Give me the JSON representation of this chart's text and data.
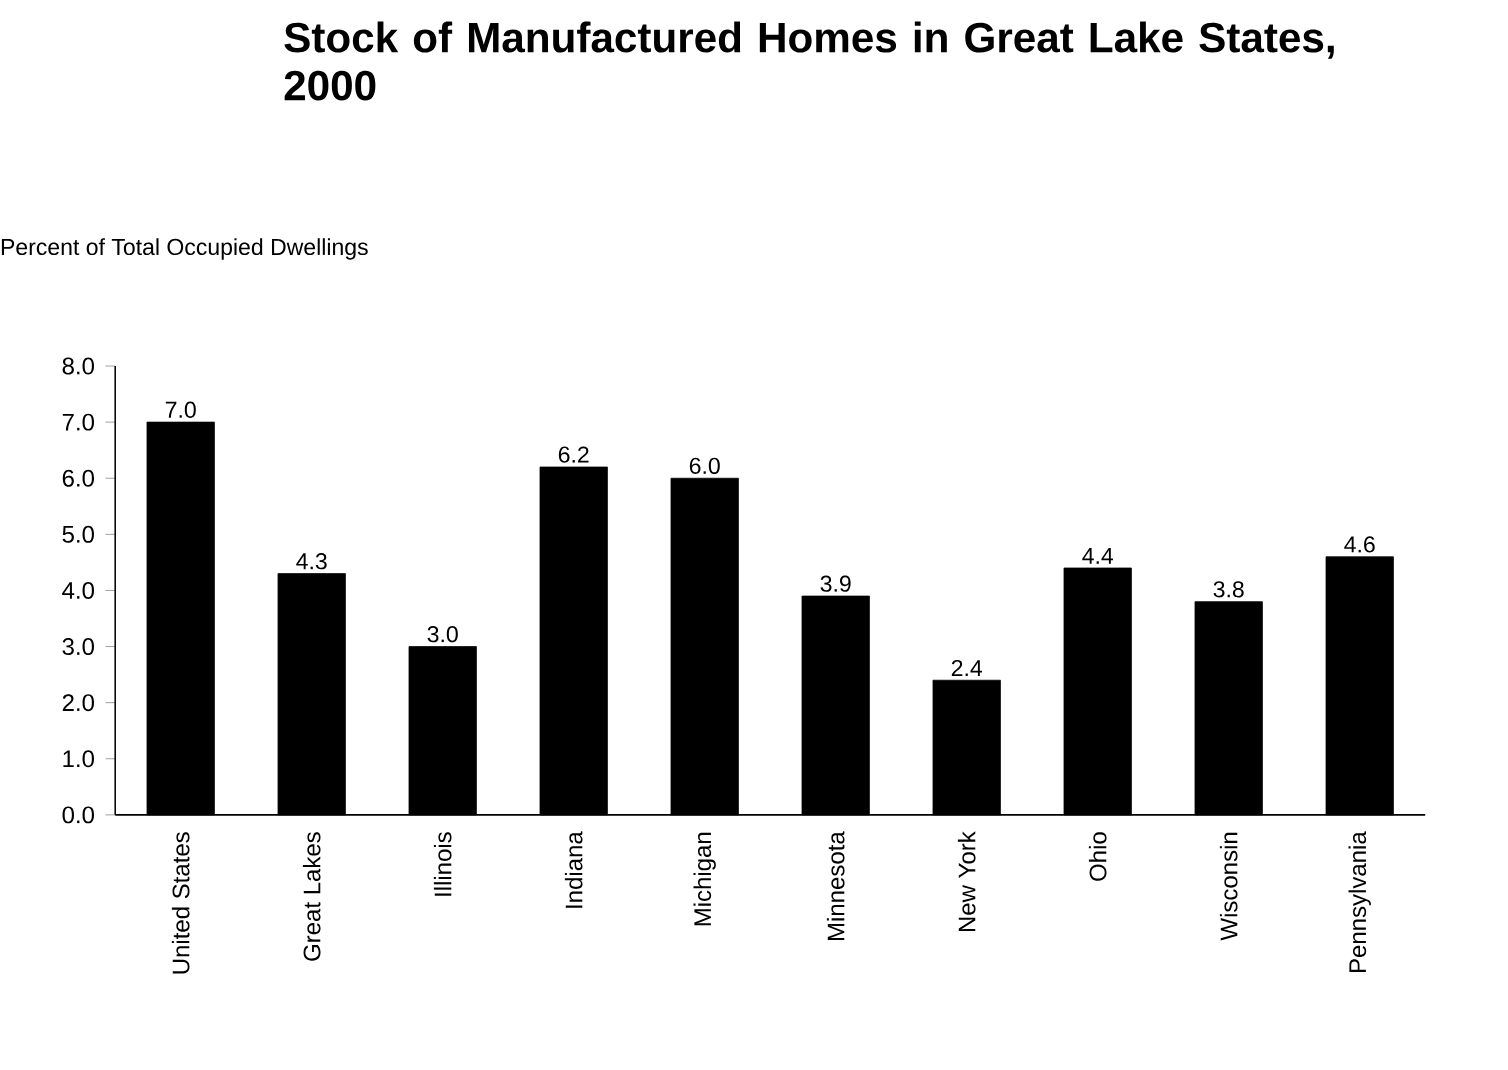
{
  "chart_data": {
    "type": "bar",
    "title": "Stock of Manufactured Homes in Great Lake States, 2000",
    "ylabel": "Percent of Total Occupied Dwellings",
    "categories": [
      "United States",
      "Great Lakes",
      "Illinois",
      "Indiana",
      "Michigan",
      "Minnesota",
      "New York",
      "Ohio",
      "Wisconsin",
      "Pennsylvania"
    ],
    "values": [
      7.0,
      4.3,
      3.0,
      6.2,
      6.0,
      3.9,
      2.4,
      4.4,
      3.8,
      4.6
    ],
    "value_labels": [
      "7.0",
      "4.3",
      "3.0",
      "6.2",
      "6.0",
      "3.9",
      "2.4",
      "4.4",
      "3.8",
      "4.6"
    ],
    "color": "#000000",
    "ylim": [
      0,
      8
    ],
    "yticks": [
      {
        "value": 0,
        "label": "0.0"
      },
      {
        "value": 1,
        "label": "1.0"
      },
      {
        "value": 2,
        "label": "2.0"
      },
      {
        "value": 3,
        "label": "3.0"
      },
      {
        "value": 4,
        "label": "4.0"
      },
      {
        "value": 5,
        "label": "5.0"
      },
      {
        "value": 6,
        "label": "6.0"
      },
      {
        "value": 7,
        "label": "7.0"
      },
      {
        "value": 8,
        "label": "8.0"
      }
    ],
    "grid": false
  }
}
